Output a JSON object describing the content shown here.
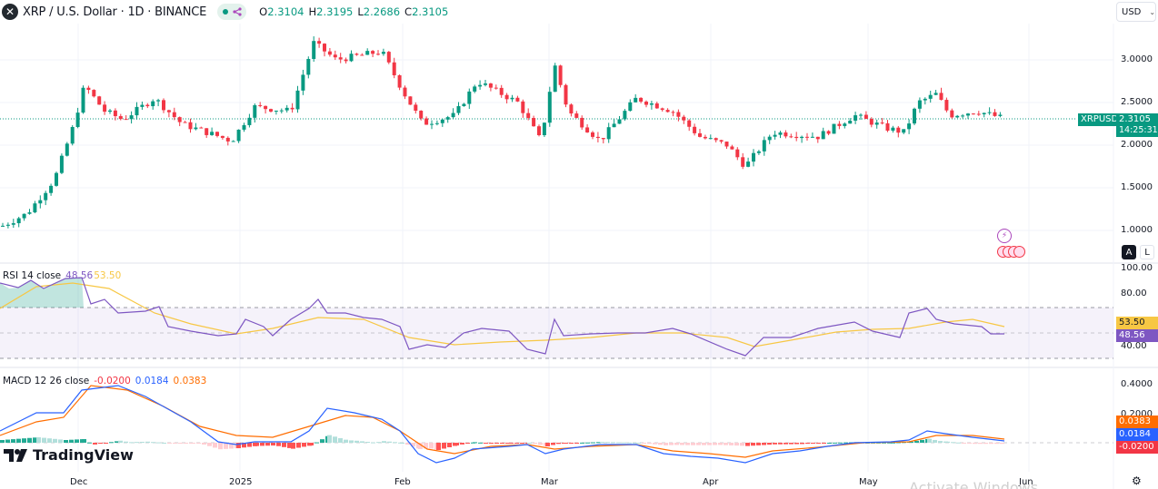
{
  "header": {
    "symbol_icon": "xrp-logo-icon",
    "title": "XRP / U.S. Dollar · 1D · BINANCE",
    "share_icon": "share-icon",
    "ohlc": {
      "o_label": "O",
      "o_value": "2.3104",
      "h_label": "H",
      "h_value": "2.3195",
      "l_label": "L",
      "l_value": "2.2686",
      "c_label": "C",
      "c_value": "2.3105"
    }
  },
  "currency_selector": {
    "value": "USD",
    "icon": "chevron-down-icon"
  },
  "price_axis": {
    "ticks": [
      "3.0000",
      "2.5000",
      "2.0000",
      "1.5000",
      "1.0000"
    ],
    "symbol_tag": "XRPUSD",
    "last_price": "2.3105",
    "countdown": "14:25:31"
  },
  "scale_buttons": {
    "auto": "A",
    "log": "L"
  },
  "rsi": {
    "name": "RSI 14 close",
    "value": "48.56",
    "ma_value": "53.50",
    "ticks": [
      "100.00",
      "80.00",
      "40.00"
    ]
  },
  "macd": {
    "name": "MACD 12 26 close",
    "histogram": "-0.0200",
    "macd": "0.0184",
    "signal": "0.0383",
    "ticks": [
      "0.4000",
      "0.2000"
    ]
  },
  "time_axis": [
    "Dec",
    "2025",
    "Feb",
    "Mar",
    "Apr",
    "May",
    "Jun"
  ],
  "branding": {
    "logo": "TradingView"
  },
  "watermark": "Activate Windows",
  "colors": {
    "up": "#089981",
    "down": "#f23645",
    "rsi_line": "#7e57c2",
    "rsi_ma": "#f7c744",
    "macd_line": "#2962ff",
    "signal_line": "#ff6d00"
  },
  "chart_data": {
    "type": "candlestick",
    "title": "XRP / U.S. Dollar · 1D · BINANCE",
    "ylabel": "USD",
    "ylim": [
      0.85,
      3.45
    ],
    "x_ticks": [
      "Dec",
      "2025",
      "Feb",
      "Mar",
      "Apr",
      "May",
      "Jun"
    ],
    "y_ticks": [
      1.0,
      1.5,
      2.0,
      2.5,
      3.0
    ],
    "last_close": 2.3105,
    "approx_closes_by_period": {
      "mid_Nov": 1.1,
      "late_Nov": 1.4,
      "Dec_02": 2.6,
      "Dec_mid": 2.4,
      "Dec_end": 2.1,
      "Jan_mid": 3.2,
      "Jan_end": 3.1,
      "Feb_03": 2.7,
      "Feb_mid": 2.75,
      "Feb_end": 2.2,
      "Mar_02": 2.9,
      "Mar_mid": 2.4,
      "Apr_07": 1.75,
      "Apr_mid": 2.1,
      "May_01": 2.2,
      "May_12": 2.5,
      "May_end": 2.31
    },
    "rsi": {
      "length": 14,
      "value": 48.56,
      "ma": 53.5,
      "bands": [
        70,
        50,
        30
      ]
    },
    "macd": {
      "fast": 12,
      "slow": 26,
      "macd": 0.0184,
      "signal": 0.0383,
      "histogram": -0.02
    }
  }
}
